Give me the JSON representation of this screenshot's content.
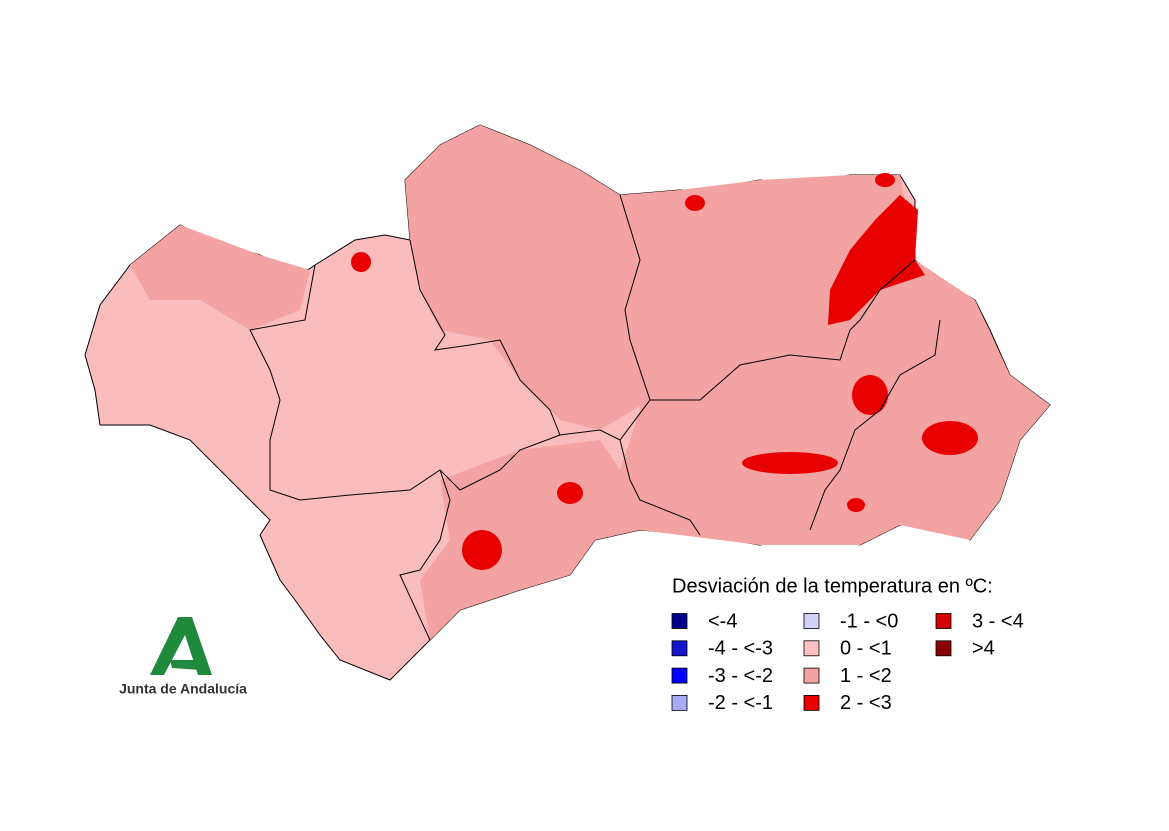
{
  "legend": {
    "title": "Desviación de la temperatura en ºC:",
    "items": [
      {
        "label": "<-4",
        "color": "#00008b"
      },
      {
        "label": "-4 - <-3",
        "color": "#1414cc"
      },
      {
        "label": "-3 - <-2",
        "color": "#0000ff"
      },
      {
        "label": "-2 - <-1",
        "color": "#a9a9f5"
      },
      {
        "label": "-1 - <0",
        "color": "#d2d2fb"
      },
      {
        "label": "0 - <1",
        "color": "#fcc0c0"
      },
      {
        "label": "1 - <2",
        "color": "#f4a3a3"
      },
      {
        "label": "2 - <3",
        "color": "#e80000"
      },
      {
        "label": "3 - <4",
        "color": "#d40000"
      },
      {
        "label": ">4",
        "color": "#8b0000"
      }
    ]
  },
  "logo": {
    "text": "Junta de Andalucía"
  }
}
